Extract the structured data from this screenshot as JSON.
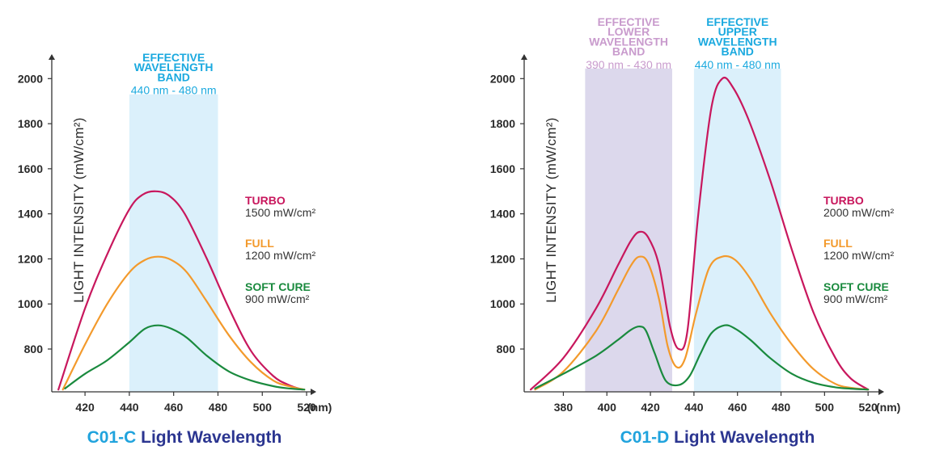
{
  "colors": {
    "turbo": "#c8175d",
    "full": "#f39a2c",
    "soft": "#1a8a3e",
    "upper_band": "#dbf0fb",
    "lower_band": "#dcd8ec",
    "upper_text": "#1aa9df",
    "lower_text": "#c99bcd",
    "caption_model": "#20a3dd",
    "caption_rest": "#2b3590",
    "axis": "#333333"
  },
  "chart_data": [
    {
      "type": "line",
      "caption_model": "C01-C",
      "caption_rest": "Light Wavelength",
      "ylabel": "LIGHT INTENSITY (mW/cm²)",
      "x_unit_label": "(nm)",
      "xlim": [
        405,
        524
      ],
      "ylim": [
        610,
        2080
      ],
      "x_ticks": [
        420,
        440,
        460,
        480,
        500,
        520
      ],
      "x_tick_labels": [
        "420",
        "440",
        "460",
        "480",
        "500",
        "520"
      ],
      "y_ticks": [
        800,
        1000,
        1200,
        1400,
        1600,
        1800,
        2000
      ],
      "y_tick_labels": [
        "800",
        "1000",
        "1200",
        "1400",
        "1600",
        "1800",
        "2000"
      ],
      "bands": [
        {
          "range": [
            440,
            480
          ],
          "label_lines": [
            "EFFECTIVE",
            "WAVELENGTH",
            "BAND"
          ],
          "value_label": "440 nm - 480 nm",
          "color_key": "upper_band",
          "text_key": "upper_text",
          "top_value": 1930
        }
      ],
      "series": [
        {
          "name": "TURBO",
          "value_label": "1500 mW/cm²",
          "color_key": "turbo",
          "x": [
            408,
            420,
            430,
            440,
            446,
            452,
            458,
            465,
            475,
            485,
            495,
            505,
            512,
            518
          ],
          "y": [
            620,
            980,
            1220,
            1420,
            1485,
            1500,
            1480,
            1400,
            1200,
            980,
            790,
            680,
            640,
            620
          ]
        },
        {
          "name": "FULL",
          "value_label": "1200 mW/cm²",
          "color_key": "full",
          "x": [
            410,
            420,
            430,
            440,
            447,
            453,
            459,
            466,
            475,
            485,
            495,
            505,
            512,
            519
          ],
          "y": [
            620,
            820,
            1000,
            1140,
            1195,
            1210,
            1195,
            1140,
            1010,
            860,
            740,
            660,
            635,
            620
          ]
        },
        {
          "name": "SOFT CURE",
          "value_label": "900 mW/cm²",
          "color_key": "soft",
          "x": [
            411,
            420,
            430,
            440,
            447,
            453,
            459,
            466,
            475,
            485,
            495,
            505,
            512,
            519
          ],
          "y": [
            625,
            690,
            750,
            830,
            890,
            905,
            890,
            850,
            770,
            700,
            660,
            635,
            625,
            620
          ]
        }
      ]
    },
    {
      "type": "line",
      "caption_model": "C01-D",
      "caption_rest": "Light Wavelength",
      "ylabel": "LIGHT INTENSITY (mW/cm²)",
      "x_unit_label": "(nm)",
      "xlim": [
        362,
        527
      ],
      "ylim": [
        610,
        2080
      ],
      "x_ticks": [
        380,
        400,
        420,
        440,
        460,
        480,
        500,
        520
      ],
      "x_tick_labels": [
        "380",
        "400",
        "420",
        "440",
        "460",
        "480",
        "500",
        "520"
      ],
      "y_ticks": [
        800,
        1000,
        1200,
        1400,
        1600,
        1800,
        2000
      ],
      "y_tick_labels": [
        "800",
        "1000",
        "1200",
        "1400",
        "1600",
        "1800",
        "2000"
      ],
      "bands": [
        {
          "range": [
            390,
            430
          ],
          "label_lines": [
            "EFFECTIVE",
            "LOWER",
            "WAVELENGTH",
            "BAND"
          ],
          "value_label": "390 nm - 430 nm",
          "color_key": "lower_band",
          "text_key": "lower_text",
          "top_value": 2045
        },
        {
          "range": [
            440,
            480
          ],
          "label_lines": [
            "EFFECTIVE",
            "UPPER",
            "WAVELENGTH",
            "BAND"
          ],
          "value_label": "440 nm - 480 nm",
          "color_key": "upper_band",
          "text_key": "upper_text",
          "top_value": 2045
        }
      ],
      "series": [
        {
          "name": "TURBO",
          "value_label": "2000 mW/cm²",
          "color_key": "turbo",
          "x": [
            365,
            380,
            395,
            405,
            411,
            415,
            419,
            424,
            429,
            433,
            437,
            442,
            448,
            453,
            458,
            465,
            475,
            485,
            495,
            505,
            512,
            520
          ],
          "y": [
            620,
            760,
            980,
            1170,
            1280,
            1320,
            1295,
            1170,
            900,
            800,
            880,
            1400,
            1870,
            2000,
            1960,
            1820,
            1550,
            1240,
            960,
            760,
            670,
            620
          ]
        },
        {
          "name": "FULL",
          "value_label": "1200 mW/cm²",
          "color_key": "full",
          "x": [
            367,
            380,
            395,
            405,
            411,
            415,
            419,
            424,
            428,
            432,
            436,
            441,
            447,
            453,
            459,
            466,
            475,
            485,
            495,
            505,
            512,
            520
          ],
          "y": [
            620,
            700,
            880,
            1060,
            1170,
            1210,
            1180,
            1020,
            810,
            720,
            760,
            960,
            1160,
            1210,
            1195,
            1110,
            960,
            820,
            710,
            645,
            628,
            620
          ]
        },
        {
          "name": "SOFT CURE",
          "value_label": "900 mW/cm²",
          "color_key": "soft",
          "x": [
            367,
            380,
            395,
            405,
            411,
            415,
            418,
            422,
            427,
            433,
            438,
            443,
            448,
            454,
            459,
            466,
            475,
            485,
            495,
            505,
            512,
            520
          ],
          "y": [
            625,
            690,
            770,
            840,
            885,
            900,
            880,
            780,
            660,
            640,
            680,
            780,
            870,
            905,
            890,
            840,
            760,
            690,
            650,
            630,
            624,
            620
          ]
        }
      ]
    }
  ]
}
